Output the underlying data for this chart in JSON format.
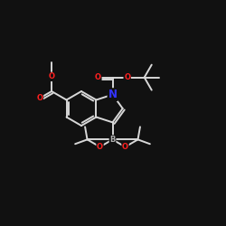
{
  "bg_color": "#111111",
  "bond_color": "#d8d8d8",
  "bond_width": 1.4,
  "atom_colors": {
    "O": "#ff2020",
    "N": "#3333ff",
    "B": "#b0b0b0",
    "C": "#d8d8d8"
  },
  "font_size_atom": 8.5,
  "font_size_small": 6.0
}
